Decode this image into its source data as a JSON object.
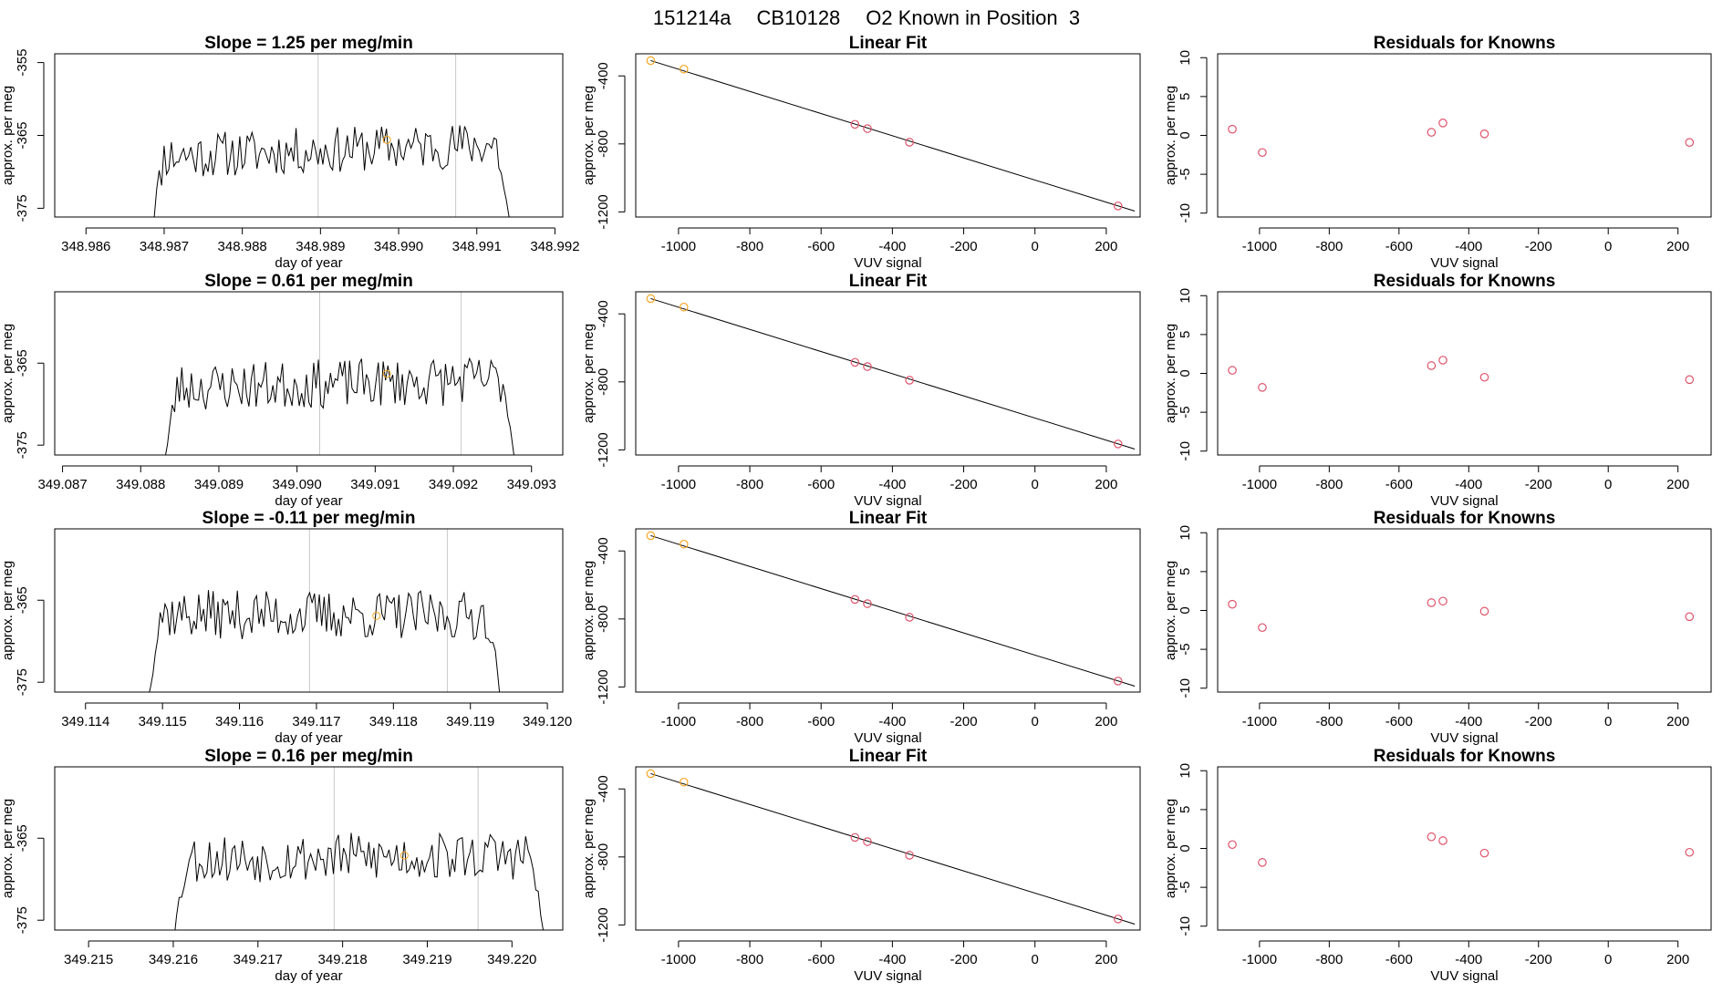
{
  "figure_title": {
    "run_id": "151214a",
    "cylinder": "CB10128",
    "description": "O2 Known in Position  3"
  },
  "colors": {
    "trace": "#000000",
    "marker": "#DF536B",
    "marker_first": "#F5A623",
    "vline": "#C8C8C8",
    "fit_line": "#000000",
    "frame": "#000000"
  },
  "chart_data": [
    {
      "type": "line",
      "row": 0,
      "title": "Slope =  1.25  per meg/min",
      "xlabel": "day of year",
      "ylabel": "approx. per meg",
      "xlim": [
        348.9856,
        348.9921
      ],
      "ylim": [
        -376.2,
        -353.8
      ],
      "xticks": [
        "348.986",
        "348.987",
        "348.988",
        "348.989",
        "348.990",
        "348.991",
        "348.992"
      ],
      "yticks": [
        "-355",
        "-365",
        "-375"
      ],
      "vlines": [
        348.98897,
        348.99073
      ],
      "trace": {
        "x_start": 348.98678,
        "x_end": 348.99147,
        "base": -367.0,
        "trend": 1.8,
        "amp": 3.2,
        "seed": 11
      },
      "mean_point": {
        "x": 348.98985,
        "y": -365.6
      }
    },
    {
      "type": "scatter",
      "row": 0,
      "title": "Linear Fit",
      "xlabel": "VUV signal",
      "ylabel": "approx. per meg",
      "xlim": [
        -1120,
        295
      ],
      "ylim": [
        -1230,
        -270
      ],
      "xticks": [
        "-1000",
        "-800",
        "-600",
        "-400",
        "-200",
        "0",
        "200"
      ],
      "yticks": [
        "-400",
        "-800",
        "-1200"
      ],
      "points": [
        {
          "x": -1078,
          "y": -310
        },
        {
          "x": -985,
          "y": -360
        },
        {
          "x": -505,
          "y": -685
        },
        {
          "x": -470,
          "y": -710
        },
        {
          "x": -352,
          "y": -790
        },
        {
          "x": 233,
          "y": -1165
        }
      ],
      "fit": {
        "x1": -1078,
        "y1": -310,
        "x2": 280,
        "y2": -1195
      }
    },
    {
      "type": "scatter",
      "row": 0,
      "title": "Residuals for Knowns",
      "xlabel": "VUV signal",
      "ylabel": "approx. per meg",
      "xlim": [
        -1120,
        295
      ],
      "ylim": [
        -10.5,
        10.5
      ],
      "xticks": [
        "-1000",
        "-800",
        "-600",
        "-400",
        "-200",
        "0",
        "200"
      ],
      "yticks": [
        "-10",
        "-5",
        "0",
        "5",
        "10"
      ],
      "points": [
        {
          "x": -1078,
          "y": 0.8
        },
        {
          "x": -992,
          "y": -2.2
        },
        {
          "x": -507,
          "y": 0.4
        },
        {
          "x": -474,
          "y": 1.6
        },
        {
          "x": -355,
          "y": 0.2
        },
        {
          "x": 233,
          "y": -0.9
        }
      ]
    },
    {
      "type": "line",
      "row": 1,
      "title": "Slope =  0.61  per meg/min",
      "xlabel": "day of year",
      "ylabel": "approx. per meg",
      "xlim": [
        349.0869,
        349.0934
      ],
      "ylim": [
        -376.2,
        -356.3
      ],
      "xticks": [
        "349.087",
        "349.088",
        "349.089",
        "349.090",
        "349.091",
        "349.092",
        "349.093"
      ],
      "yticks": [
        "-365",
        "-375"
      ],
      "vlines": [
        349.09029,
        349.0921
      ],
      "trace": {
        "x_start": 349.08825,
        "x_end": 349.09285,
        "base": -367.5,
        "trend": 1.0,
        "amp": 3.0,
        "seed": 23
      },
      "mean_point": {
        "x": 349.09115,
        "y": -366.3
      }
    },
    {
      "type": "scatter",
      "row": 1,
      "title": "Linear Fit",
      "xlabel": "VUV signal",
      "ylabel": "approx. per meg",
      "xlim": [
        -1120,
        295
      ],
      "ylim": [
        -1230,
        -270
      ],
      "xticks": [
        "-1000",
        "-800",
        "-600",
        "-400",
        "-200",
        "0",
        "200"
      ],
      "yticks": [
        "-400",
        "-800",
        "-1200"
      ],
      "points": [
        {
          "x": -1078,
          "y": -310
        },
        {
          "x": -985,
          "y": -360
        },
        {
          "x": -505,
          "y": -685
        },
        {
          "x": -470,
          "y": -710
        },
        {
          "x": -352,
          "y": -790
        },
        {
          "x": 233,
          "y": -1165
        }
      ],
      "fit": {
        "x1": -1078,
        "y1": -310,
        "x2": 280,
        "y2": -1195
      }
    },
    {
      "type": "scatter",
      "row": 1,
      "title": "Residuals for Knowns",
      "xlabel": "VUV signal",
      "ylabel": "approx. per meg",
      "xlim": [
        -1120,
        295
      ],
      "ylim": [
        -10.5,
        10.5
      ],
      "xticks": [
        "-1000",
        "-800",
        "-600",
        "-400",
        "-200",
        "0",
        "200"
      ],
      "yticks": [
        "-10",
        "-5",
        "0",
        "5",
        "10"
      ],
      "points": [
        {
          "x": -1078,
          "y": 0.4
        },
        {
          "x": -992,
          "y": -1.8
        },
        {
          "x": -507,
          "y": 1.0
        },
        {
          "x": -474,
          "y": 1.7
        },
        {
          "x": -355,
          "y": -0.5
        },
        {
          "x": 233,
          "y": -0.8
        }
      ]
    },
    {
      "type": "line",
      "row": 2,
      "title": "Slope =  -0.11  per meg/min",
      "xlabel": "day of year",
      "ylabel": "approx. per meg",
      "xlim": [
        349.1136,
        349.1202
      ],
      "ylim": [
        -376.2,
        -356.3
      ],
      "xticks": [
        "349.114",
        "349.115",
        "349.116",
        "349.117",
        "349.118",
        "349.119",
        "349.120"
      ],
      "yticks": [
        "-365",
        "-375"
      ],
      "vlines": [
        349.11691,
        349.1187
      ],
      "trace": {
        "x_start": 349.11475,
        "x_end": 349.11945,
        "base": -366.8,
        "trend": -0.2,
        "amp": 3.0,
        "seed": 37
      },
      "mean_point": {
        "x": 349.11778,
        "y": -366.9
      }
    },
    {
      "type": "scatter",
      "row": 2,
      "title": "Linear Fit",
      "xlabel": "VUV signal",
      "ylabel": "approx. per meg",
      "xlim": [
        -1120,
        295
      ],
      "ylim": [
        -1230,
        -270
      ],
      "xticks": [
        "-1000",
        "-800",
        "-600",
        "-400",
        "-200",
        "0",
        "200"
      ],
      "yticks": [
        "-400",
        "-800",
        "-1200"
      ],
      "points": [
        {
          "x": -1078,
          "y": -310
        },
        {
          "x": -985,
          "y": -360
        },
        {
          "x": -505,
          "y": -685
        },
        {
          "x": -470,
          "y": -710
        },
        {
          "x": -352,
          "y": -790
        },
        {
          "x": 233,
          "y": -1165
        }
      ],
      "fit": {
        "x1": -1078,
        "y1": -310,
        "x2": 280,
        "y2": -1195
      }
    },
    {
      "type": "scatter",
      "row": 2,
      "title": "Residuals for Knowns",
      "xlabel": "VUV signal",
      "ylabel": "approx. per meg",
      "xlim": [
        -1120,
        295
      ],
      "ylim": [
        -10.5,
        10.5
      ],
      "xticks": [
        "-1000",
        "-800",
        "-600",
        "-400",
        "-200",
        "0",
        "200"
      ],
      "yticks": [
        "-10",
        "-5",
        "0",
        "5",
        "10"
      ],
      "points": [
        {
          "x": -1078,
          "y": 0.8
        },
        {
          "x": -992,
          "y": -2.2
        },
        {
          "x": -507,
          "y": 1.0
        },
        {
          "x": -474,
          "y": 1.2
        },
        {
          "x": -355,
          "y": -0.1
        },
        {
          "x": 233,
          "y": -0.8
        }
      ]
    },
    {
      "type": "line",
      "row": 3,
      "title": "Slope =  0.16  per meg/min",
      "xlabel": "day of year",
      "ylabel": "approx. per meg",
      "xlim": [
        349.2146,
        349.2206
      ],
      "ylim": [
        -376.2,
        -356.3
      ],
      "xticks": [
        "349.215",
        "349.216",
        "349.217",
        "349.218",
        "349.219",
        "349.220"
      ],
      "yticks": [
        "-365",
        "-375"
      ],
      "vlines": [
        349.2179,
        349.2196
      ],
      "trace": {
        "x_start": 349.21595,
        "x_end": 349.22043,
        "base": -367.3,
        "trend": 0.4,
        "amp": 3.0,
        "seed": 53
      },
      "mean_point": {
        "x": 349.21873,
        "y": -367.1
      }
    },
    {
      "type": "scatter",
      "row": 3,
      "title": "Linear Fit",
      "xlabel": "VUV signal",
      "ylabel": "approx. per meg",
      "xlim": [
        -1120,
        295
      ],
      "ylim": [
        -1230,
        -270
      ],
      "xticks": [
        "-1000",
        "-800",
        "-600",
        "-400",
        "-200",
        "0",
        "200"
      ],
      "yticks": [
        "-400",
        "-800",
        "-1200"
      ],
      "points": [
        {
          "x": -1078,
          "y": -310
        },
        {
          "x": -985,
          "y": -360
        },
        {
          "x": -505,
          "y": -685
        },
        {
          "x": -470,
          "y": -710
        },
        {
          "x": -352,
          "y": -790
        },
        {
          "x": 233,
          "y": -1165
        }
      ],
      "fit": {
        "x1": -1078,
        "y1": -310,
        "x2": 280,
        "y2": -1195
      }
    },
    {
      "type": "scatter",
      "row": 3,
      "title": "Residuals for Knowns",
      "xlabel": "VUV signal",
      "ylabel": "approx. per meg",
      "xlim": [
        -1120,
        295
      ],
      "ylim": [
        -10.5,
        10.5
      ],
      "xticks": [
        "-1000",
        "-800",
        "-600",
        "-400",
        "-200",
        "0",
        "200"
      ],
      "yticks": [
        "-10",
        "-5",
        "0",
        "5",
        "10"
      ],
      "points": [
        {
          "x": -1078,
          "y": 0.5
        },
        {
          "x": -992,
          "y": -1.8
        },
        {
          "x": -507,
          "y": 1.5
        },
        {
          "x": -474,
          "y": 1.0
        },
        {
          "x": -355,
          "y": -0.6
        },
        {
          "x": 233,
          "y": -0.5
        }
      ]
    }
  ]
}
